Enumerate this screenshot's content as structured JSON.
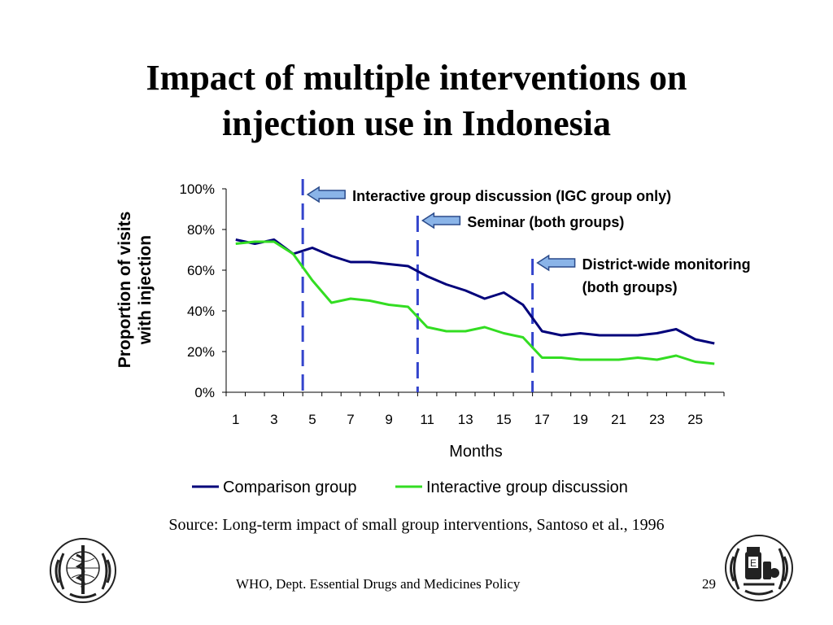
{
  "slide": {
    "title_line1": "Impact of multiple interventions on",
    "title_line2": "injection use in Indonesia",
    "source": "Source: Long-term impact of small group interventions, Santoso et al., 1996",
    "footer": "WHO, Dept. Essential Drugs and Medicines Policy",
    "page_number": "29",
    "logos": [
      "who-emblem-icon",
      "essential-drugs-emblem-icon"
    ]
  },
  "chart_data": {
    "type": "line",
    "title": "",
    "xlabel": "Months",
    "ylabel": "Proportion of visits with injection",
    "ylabel_lines": [
      "Proportion of visits",
      "with injection"
    ],
    "xlim": [
      1,
      26
    ],
    "ylim": [
      0,
      100
    ],
    "x_tick_labels": [
      "1",
      "3",
      "5",
      "7",
      "9",
      "11",
      "13",
      "15",
      "17",
      "19",
      "21",
      "23",
      "25"
    ],
    "y_tick_labels": [
      "0%",
      "20%",
      "40%",
      "60%",
      "80%",
      "100%"
    ],
    "y_ticks": [
      0,
      20,
      40,
      60,
      80,
      100
    ],
    "x": [
      1,
      2,
      3,
      4,
      5,
      6,
      7,
      8,
      9,
      10,
      11,
      12,
      13,
      14,
      15,
      16,
      17,
      18,
      19,
      20,
      21,
      22,
      23,
      24,
      25,
      26
    ],
    "series": [
      {
        "name": "Comparison group",
        "color": "#00007a",
        "values": [
          75,
          73,
          75,
          68,
          71,
          67,
          64,
          64,
          63,
          62,
          57,
          53,
          50,
          46,
          49,
          43,
          30,
          28,
          29,
          28,
          28,
          28,
          29,
          31,
          26,
          24
        ]
      },
      {
        "name": "Interactive group discussion",
        "color": "#33dd22",
        "values": [
          73,
          74,
          74,
          68,
          55,
          44,
          46,
          45,
          43,
          42,
          32,
          30,
          30,
          32,
          29,
          27,
          17,
          17,
          16,
          16,
          16,
          17,
          16,
          18,
          15,
          14
        ]
      }
    ],
    "interventions": [
      {
        "x": 4.5,
        "label_lines": [
          "Interactive group discussion (IGC group only)"
        ]
      },
      {
        "x": 10.5,
        "label_lines": [
          "Seminar (both groups)"
        ]
      },
      {
        "x": 16.5,
        "label_lines": [
          "District-wide monitoring",
          "(both groups)"
        ]
      }
    ],
    "intervention_line_color": "#3344cc",
    "arrow_color": "#8ab4e8",
    "legend_position": "bottom",
    "grid": false
  }
}
